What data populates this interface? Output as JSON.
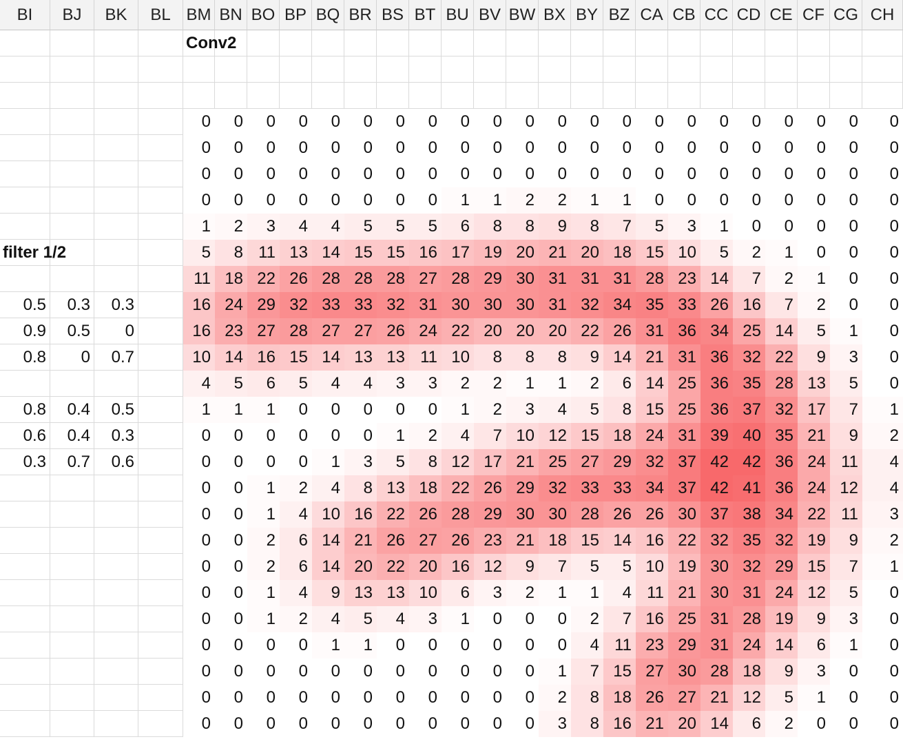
{
  "columns": [
    "BI",
    "BJ",
    "BK",
    "BL",
    "BM",
    "BN",
    "BO",
    "BP",
    "BQ",
    "BR",
    "BS",
    "BT",
    "BU",
    "BV",
    "BW",
    "BX",
    "BY",
    "BZ",
    "CA",
    "CB",
    "CC",
    "CD",
    "CE",
    "CF",
    "CG",
    "CH"
  ],
  "labels": {
    "conv": "Conv2",
    "filter": "filter 1/2"
  },
  "filter": {
    "block1": [
      [
        "0.5",
        "0.3",
        "0.3"
      ],
      [
        "0.9",
        "0.5",
        "0"
      ],
      [
        "0.8",
        "0",
        "0.7"
      ]
    ],
    "block2": [
      [
        "0.8",
        "0.4",
        "0.5"
      ],
      [
        "0.6",
        "0.4",
        "0.3"
      ],
      [
        "0.3",
        "0.7",
        "0.6"
      ]
    ]
  },
  "heatmap_colors": {
    "low": "#ffffff",
    "high": "#f8696b"
  },
  "heatmap_max": 42,
  "conv2_values": [
    [
      0,
      0,
      0,
      0,
      0,
      0,
      0,
      0,
      0,
      0,
      0,
      0,
      0,
      0,
      0,
      0,
      0,
      0,
      0,
      0,
      0,
      0
    ],
    [
      0,
      0,
      0,
      0,
      0,
      0,
      0,
      0,
      0,
      0,
      0,
      0,
      0,
      0,
      0,
      0,
      0,
      0,
      0,
      0,
      0,
      0
    ],
    [
      0,
      0,
      0,
      0,
      0,
      0,
      0,
      0,
      0,
      0,
      0,
      0,
      0,
      0,
      0,
      0,
      0,
      0,
      0,
      0,
      0,
      0
    ],
    [
      0,
      0,
      0,
      0,
      0,
      0,
      0,
      0,
      1,
      1,
      2,
      2,
      1,
      1,
      0,
      0,
      0,
      0,
      0,
      0,
      0,
      0
    ],
    [
      1,
      2,
      3,
      4,
      4,
      5,
      5,
      5,
      6,
      8,
      8,
      9,
      8,
      7,
      5,
      3,
      1,
      0,
      0,
      0,
      0,
      0
    ],
    [
      5,
      8,
      11,
      13,
      14,
      15,
      15,
      16,
      17,
      19,
      20,
      21,
      20,
      18,
      15,
      10,
      5,
      2,
      1,
      0,
      0,
      0
    ],
    [
      11,
      18,
      22,
      26,
      28,
      28,
      28,
      27,
      28,
      29,
      30,
      31,
      31,
      31,
      28,
      23,
      14,
      7,
      2,
      1,
      0,
      0
    ],
    [
      16,
      24,
      29,
      32,
      33,
      33,
      32,
      31,
      30,
      30,
      30,
      31,
      32,
      34,
      35,
      33,
      26,
      16,
      7,
      2,
      0,
      0
    ],
    [
      16,
      23,
      27,
      28,
      27,
      27,
      26,
      24,
      22,
      20,
      20,
      20,
      22,
      26,
      31,
      36,
      34,
      25,
      14,
      5,
      1,
      0
    ],
    [
      10,
      14,
      16,
      15,
      14,
      13,
      13,
      11,
      10,
      8,
      8,
      8,
      9,
      14,
      21,
      31,
      36,
      32,
      22,
      9,
      3,
      0
    ],
    [
      4,
      5,
      6,
      5,
      4,
      4,
      3,
      3,
      2,
      2,
      1,
      1,
      2,
      6,
      14,
      25,
      36,
      35,
      28,
      13,
      5,
      0
    ],
    [
      1,
      1,
      1,
      0,
      0,
      0,
      0,
      0,
      1,
      2,
      3,
      4,
      5,
      8,
      15,
      25,
      36,
      37,
      32,
      17,
      7,
      1
    ],
    [
      0,
      0,
      0,
      0,
      0,
      0,
      1,
      2,
      4,
      7,
      10,
      12,
      15,
      18,
      24,
      31,
      39,
      40,
      35,
      21,
      9,
      2
    ],
    [
      0,
      0,
      0,
      0,
      1,
      3,
      5,
      8,
      12,
      17,
      21,
      25,
      27,
      29,
      32,
      37,
      42,
      42,
      36,
      24,
      11,
      4
    ],
    [
      0,
      0,
      1,
      2,
      4,
      8,
      13,
      18,
      22,
      26,
      29,
      32,
      33,
      33,
      34,
      37,
      42,
      41,
      36,
      24,
      12,
      4
    ],
    [
      0,
      0,
      1,
      4,
      10,
      16,
      22,
      26,
      28,
      29,
      30,
      30,
      28,
      26,
      26,
      30,
      37,
      38,
      34,
      22,
      11,
      3
    ],
    [
      0,
      0,
      2,
      6,
      14,
      21,
      26,
      27,
      26,
      23,
      21,
      18,
      15,
      14,
      16,
      22,
      32,
      35,
      32,
      19,
      9,
      2
    ],
    [
      0,
      0,
      2,
      6,
      14,
      20,
      22,
      20,
      16,
      12,
      9,
      7,
      5,
      5,
      10,
      19,
      30,
      32,
      29,
      15,
      7,
      1
    ],
    [
      0,
      0,
      1,
      4,
      9,
      13,
      13,
      10,
      6,
      3,
      2,
      1,
      1,
      4,
      11,
      21,
      30,
      31,
      24,
      12,
      5,
      0
    ],
    [
      0,
      0,
      1,
      2,
      4,
      5,
      4,
      3,
      1,
      0,
      0,
      0,
      2,
      7,
      16,
      25,
      31,
      28,
      19,
      9,
      3,
      0
    ],
    [
      0,
      0,
      0,
      0,
      1,
      1,
      0,
      0,
      0,
      0,
      0,
      0,
      4,
      11,
      23,
      29,
      31,
      24,
      14,
      6,
      1,
      0
    ],
    [
      0,
      0,
      0,
      0,
      0,
      0,
      0,
      0,
      0,
      0,
      0,
      1,
      7,
      15,
      27,
      30,
      28,
      18,
      9,
      3,
      0,
      0
    ],
    [
      0,
      0,
      0,
      0,
      0,
      0,
      0,
      0,
      0,
      0,
      0,
      2,
      8,
      18,
      26,
      27,
      21,
      12,
      5,
      1,
      0,
      0
    ],
    [
      0,
      0,
      0,
      0,
      0,
      0,
      0,
      0,
      0,
      0,
      0,
      3,
      8,
      16,
      21,
      20,
      14,
      6,
      2,
      0,
      0,
      0
    ]
  ]
}
